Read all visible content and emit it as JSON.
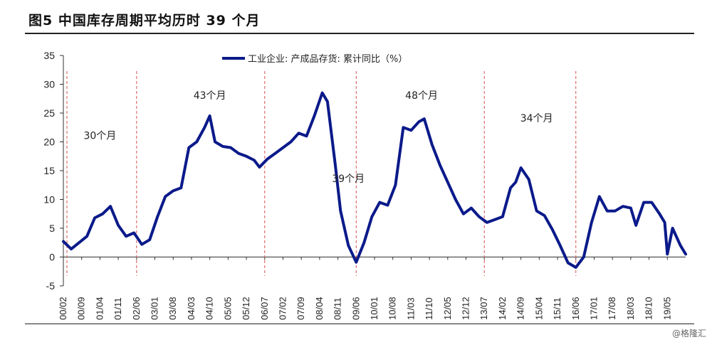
{
  "figure": {
    "title": "图5  中国库存周期平均历时 39 个月",
    "watermark": "@格隆汇"
  },
  "chart_data": {
    "type": "line",
    "title": "",
    "xlabel": "",
    "ylabel": "",
    "ylim": [
      -5,
      35
    ],
    "yticks": [
      -5,
      0,
      5,
      10,
      15,
      20,
      25,
      30,
      35
    ],
    "grid": false,
    "legend_position": "top-center",
    "x_tick_labels": [
      "00/02",
      "00/09",
      "01/04",
      "01/11",
      "02/06",
      "03/01",
      "03/08",
      "04/03",
      "04/10",
      "05/05",
      "05/12",
      "06/07",
      "07/02",
      "07/09",
      "08/04",
      "08/11",
      "09/06",
      "10/01",
      "10/08",
      "11/03",
      "11/10",
      "12/05",
      "12/12",
      "13/07",
      "14/02",
      "14/09",
      "15/04",
      "15/11",
      "16/06",
      "17/01",
      "17/08",
      "18/03",
      "18/10",
      "19/05"
    ],
    "cycle_boundaries": [
      "00/02",
      "02/06",
      "06/07",
      "09/06",
      "13/07",
      "16/06"
    ],
    "annotations": [
      {
        "text": "30个月",
        "x": "01/04",
        "y": 20.5
      },
      {
        "text": "43个月",
        "x": "04/10",
        "y": 27.5
      },
      {
        "text": "39个月",
        "x": "09/03",
        "y": 13.0
      },
      {
        "text": "48个月",
        "x": "11/07",
        "y": 27.5
      },
      {
        "text": "34个月",
        "x": "15/03",
        "y": 23.5
      }
    ],
    "series": [
      {
        "name": "工业企业: 产成品存货: 累计同比（%）",
        "color": "#0b1a8a",
        "points": [
          [
            "00/02",
            2.7
          ],
          [
            "00/05",
            1.4
          ],
          [
            "00/08",
            2.5
          ],
          [
            "00/11",
            3.6
          ],
          [
            "01/02",
            6.8
          ],
          [
            "01/05",
            7.5
          ],
          [
            "01/08",
            8.8
          ],
          [
            "01/11",
            5.5
          ],
          [
            "02/02",
            3.6
          ],
          [
            "02/05",
            4.2
          ],
          [
            "02/08",
            2.2
          ],
          [
            "02/11",
            3.0
          ],
          [
            "03/02",
            7.0
          ],
          [
            "03/05",
            10.5
          ],
          [
            "03/08",
            11.5
          ],
          [
            "03/11",
            12.0
          ],
          [
            "04/02",
            19.0
          ],
          [
            "04/05",
            20.0
          ],
          [
            "04/08",
            22.5
          ],
          [
            "04/10",
            24.5
          ],
          [
            "04/12",
            20.0
          ],
          [
            "05/03",
            19.2
          ],
          [
            "05/06",
            19.0
          ],
          [
            "05/09",
            18.0
          ],
          [
            "05/12",
            17.5
          ],
          [
            "06/03",
            16.8
          ],
          [
            "06/05",
            15.6
          ],
          [
            "06/08",
            17.0
          ],
          [
            "06/11",
            18.0
          ],
          [
            "07/02",
            19.0
          ],
          [
            "07/05",
            20.0
          ],
          [
            "07/08",
            21.5
          ],
          [
            "07/11",
            21.0
          ],
          [
            "08/02",
            24.5
          ],
          [
            "08/05",
            28.5
          ],
          [
            "08/07",
            27.0
          ],
          [
            "08/10",
            16.0
          ],
          [
            "08/12",
            8.0
          ],
          [
            "09/03",
            2.0
          ],
          [
            "09/06",
            -0.9
          ],
          [
            "09/09",
            2.5
          ],
          [
            "09/12",
            7.0
          ],
          [
            "10/03",
            9.5
          ],
          [
            "10/06",
            9.0
          ],
          [
            "10/09",
            12.5
          ],
          [
            "10/12",
            22.5
          ],
          [
            "11/03",
            22.0
          ],
          [
            "11/06",
            23.5
          ],
          [
            "11/08",
            24.0
          ],
          [
            "11/11",
            19.5
          ],
          [
            "12/02",
            16.0
          ],
          [
            "12/05",
            13.0
          ],
          [
            "12/08",
            10.0
          ],
          [
            "12/11",
            7.5
          ],
          [
            "13/02",
            8.5
          ],
          [
            "13/05",
            7.0
          ],
          [
            "13/08",
            6.0
          ],
          [
            "13/11",
            6.5
          ],
          [
            "14/02",
            7.0
          ],
          [
            "14/05",
            12.0
          ],
          [
            "14/07",
            13.0
          ],
          [
            "14/09",
            15.5
          ],
          [
            "14/12",
            13.5
          ],
          [
            "15/03",
            8.0
          ],
          [
            "15/06",
            7.2
          ],
          [
            "15/09",
            4.8
          ],
          [
            "15/12",
            2.0
          ],
          [
            "16/03",
            -1.0
          ],
          [
            "16/06",
            -1.8
          ],
          [
            "16/09",
            0.0
          ],
          [
            "16/12",
            6.0
          ],
          [
            "17/03",
            10.5
          ],
          [
            "17/06",
            8.0
          ],
          [
            "17/09",
            8.0
          ],
          [
            "17/12",
            8.8
          ],
          [
            "18/03",
            8.5
          ],
          [
            "18/05",
            5.5
          ],
          [
            "18/08",
            9.5
          ],
          [
            "18/11",
            9.5
          ],
          [
            "19/02",
            7.5
          ],
          [
            "19/04",
            6.0
          ],
          [
            "19/05",
            0.5
          ],
          [
            "19/07",
            5.0
          ],
          [
            "19/10",
            2.0
          ],
          [
            "19/12",
            0.5
          ]
        ]
      }
    ]
  }
}
